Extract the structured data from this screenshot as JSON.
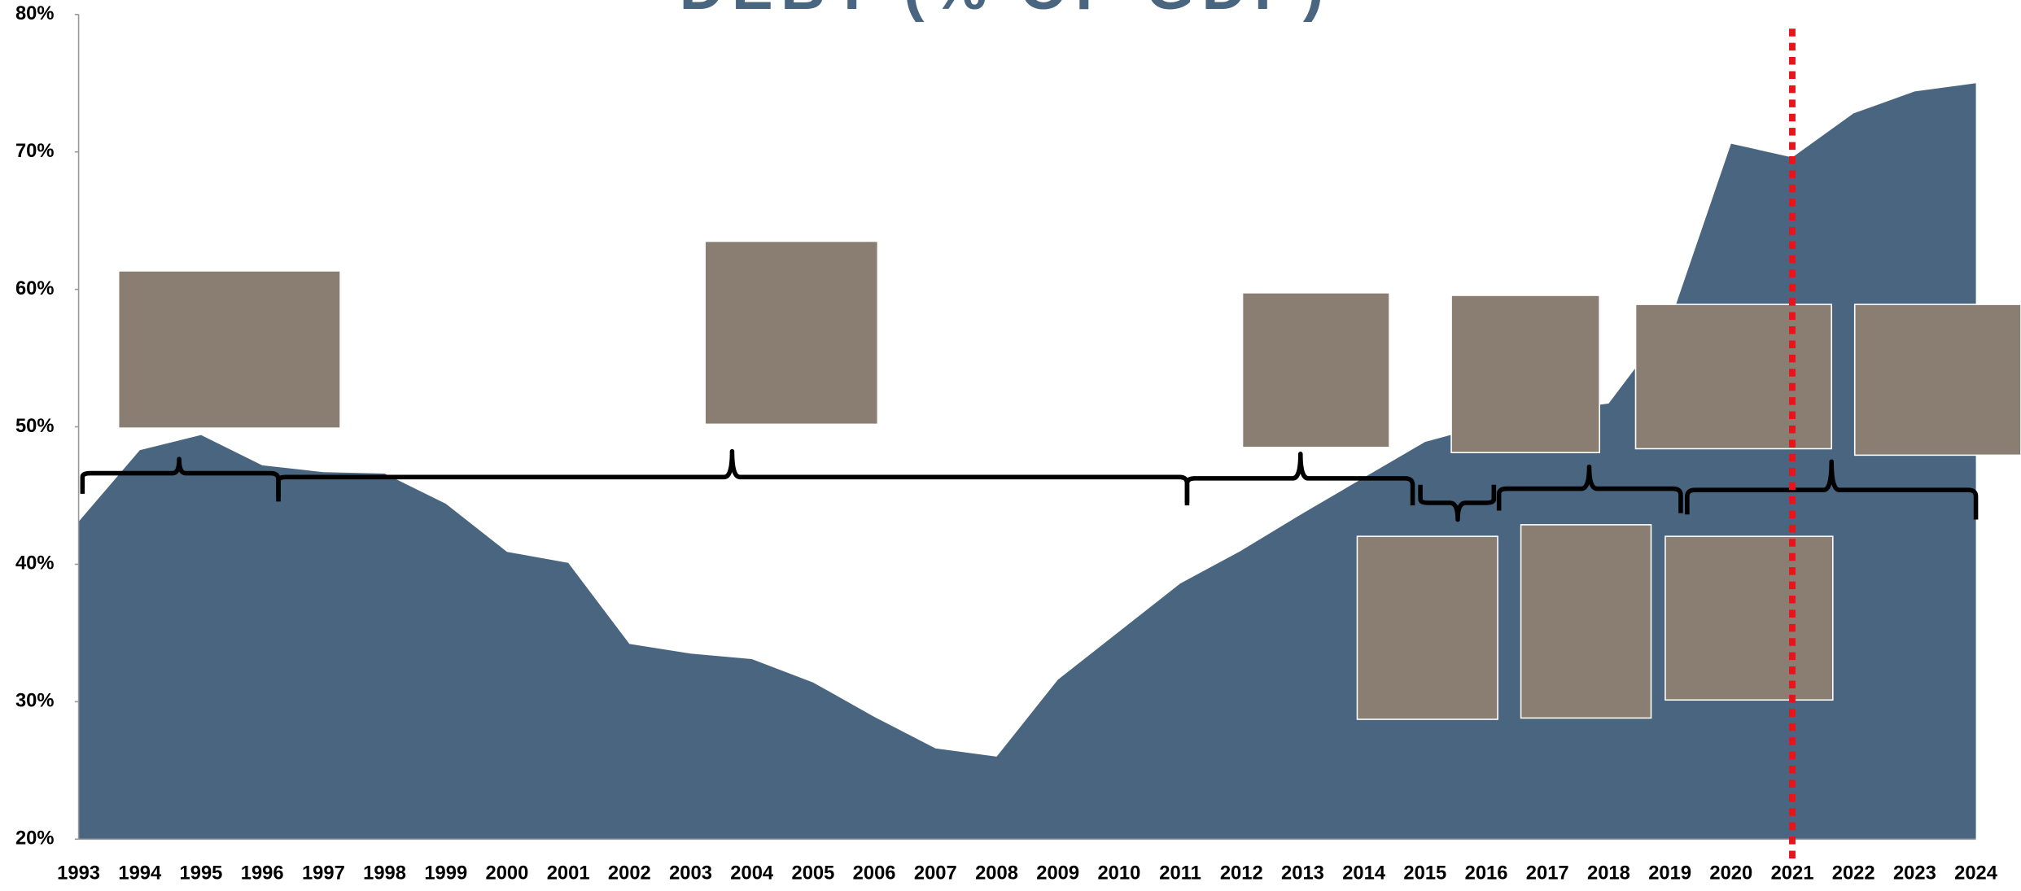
{
  "chart_data": {
    "type": "area",
    "title": "DEBT (% OF GDP)",
    "x": [
      1993,
      1994,
      1995,
      1996,
      1997,
      1998,
      1999,
      2000,
      2001,
      2002,
      2003,
      2004,
      2005,
      2006,
      2007,
      2008,
      2009,
      2010,
      2011,
      2012,
      2013,
      2014,
      2015,
      2016,
      2017,
      2018,
      2019,
      2020,
      2021,
      2022,
      2023,
      2024
    ],
    "values": [
      43.1,
      48.3,
      49.4,
      47.2,
      46.7,
      46.6,
      44.4,
      40.9,
      40.1,
      34.2,
      33.5,
      33.1,
      31.4,
      28.9,
      26.6,
      26.0,
      31.6,
      35.1,
      38.6,
      41.0,
      43.7,
      46.3,
      48.9,
      50.1,
      51.1,
      51.7,
      57.6,
      70.6,
      69.6,
      72.8,
      74.4,
      75.0
    ],
    "color": "#4a6580",
    "xlim": [
      1993,
      2024
    ],
    "ylim": [
      20,
      80
    ],
    "yticks": [
      {
        "value": 20,
        "label": "20%"
      },
      {
        "value": 30,
        "label": "30%"
      },
      {
        "value": 40,
        "label": "40%"
      },
      {
        "value": 50,
        "label": "50%"
      },
      {
        "value": 60,
        "label": "60%"
      },
      {
        "value": 70,
        "label": "70%"
      },
      {
        "value": 80,
        "label": "80%"
      }
    ],
    "highlight_x": 2021,
    "highlight_color": "#e8141c"
  }
}
